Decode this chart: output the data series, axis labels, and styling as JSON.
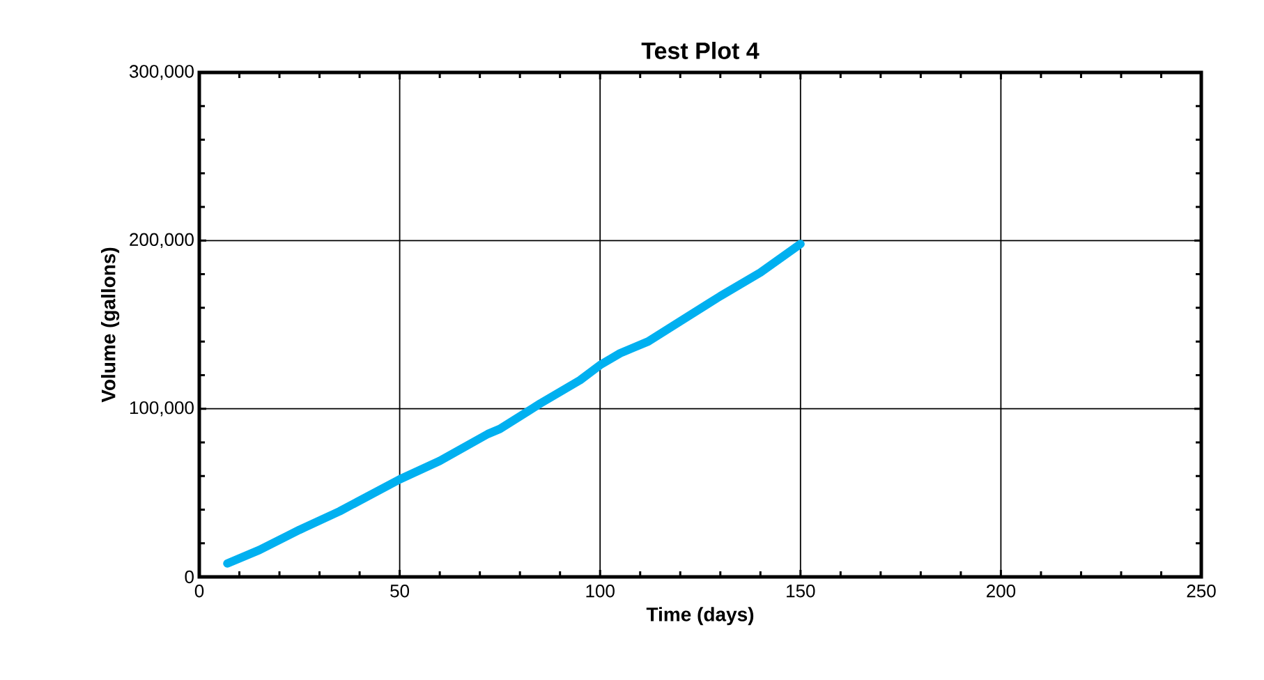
{
  "chart_data": {
    "type": "line",
    "title": "Test Plot 4",
    "xlabel": "Time (days)",
    "ylabel": "Volume (gallons)",
    "xlim": [
      0,
      250
    ],
    "xticks": [
      0,
      50,
      100,
      150,
      200,
      250
    ],
    "ylim": [
      0,
      300000
    ],
    "yticks": [
      {
        "value": 0,
        "label": "0"
      },
      {
        "value": 100000,
        "label": "100,000"
      },
      {
        "value": 200000,
        "label": "200,000"
      },
      {
        "value": 300000,
        "label": "300,000"
      }
    ],
    "grid": true,
    "marker": "none",
    "line_style": "solid",
    "series": [
      {
        "color": "#00b0f0",
        "x": [
          7,
          15,
          25,
          35,
          50,
          60,
          72,
          75,
          85,
          95,
          100,
          105,
          108,
          112,
          120,
          130,
          140,
          150
        ],
        "values": [
          8000,
          16000,
          28000,
          39000,
          58000,
          69000,
          85000,
          88000,
          103000,
          117000,
          126000,
          133000,
          136000,
          140000,
          152000,
          167000,
          181000,
          198000
        ]
      }
    ]
  }
}
